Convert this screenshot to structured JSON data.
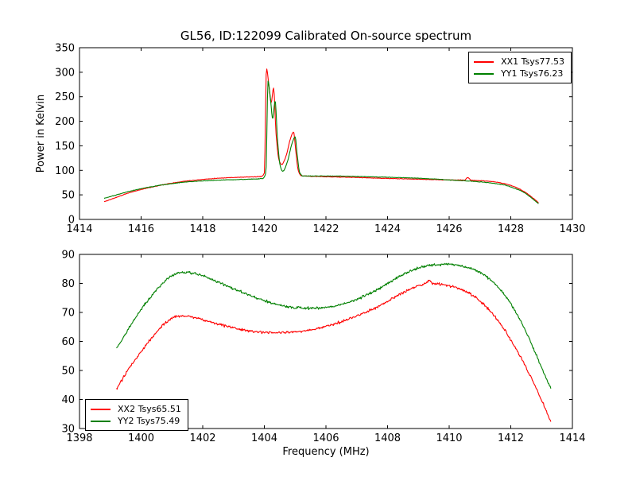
{
  "figure": {
    "background": "#ffffff",
    "frame_color": "#000000",
    "text_color": "#000000"
  },
  "chart_data": [
    {
      "type": "line",
      "title": "GL56, ID:122099 Calibrated On-source spectrum",
      "xlabel": "",
      "ylabel": "Power in Kelvin",
      "xlim": [
        1414,
        1430
      ],
      "ylim": [
        0,
        350
      ],
      "xticks": [
        1414,
        1416,
        1418,
        1420,
        1422,
        1424,
        1426,
        1428,
        1430
      ],
      "yticks": [
        0,
        50,
        100,
        150,
        200,
        250,
        300,
        350
      ],
      "grid": false,
      "legend_position": "upper right",
      "series": [
        {
          "name": "XX1 Tsys77.53",
          "color": "#ff0000",
          "noise": 1.1,
          "seed": 11,
          "keypoints": [
            [
              1414.8,
              36
            ],
            [
              1415.2,
              45
            ],
            [
              1415.6,
              54
            ],
            [
              1416.0,
              61
            ],
            [
              1416.5,
              68
            ],
            [
              1417.0,
              74
            ],
            [
              1417.5,
              78.5
            ],
            [
              1418.0,
              81.5
            ],
            [
              1418.5,
              84
            ],
            [
              1419.0,
              85.5
            ],
            [
              1419.5,
              86.5
            ],
            [
              1419.9,
              87.5
            ],
            [
              1420.0,
              95
            ],
            [
              1420.07,
              308
            ],
            [
              1420.15,
              272
            ],
            [
              1420.22,
              238
            ],
            [
              1420.3,
              268
            ],
            [
              1420.38,
              175
            ],
            [
              1420.48,
              120
            ],
            [
              1420.56,
              112
            ],
            [
              1420.7,
              128
            ],
            [
              1420.85,
              165
            ],
            [
              1420.95,
              178
            ],
            [
              1421.02,
              140
            ],
            [
              1421.1,
              100
            ],
            [
              1421.2,
              89
            ],
            [
              1421.5,
              88
            ],
            [
              1422.0,
              87
            ],
            [
              1423.0,
              85.5
            ],
            [
              1424.0,
              83.5
            ],
            [
              1425.0,
              82
            ],
            [
              1425.6,
              81
            ],
            [
              1426.0,
              80.5
            ],
            [
              1426.5,
              80.2
            ],
            [
              1426.6,
              85.5
            ],
            [
              1426.72,
              79.8
            ],
            [
              1427.0,
              79
            ],
            [
              1427.4,
              77
            ],
            [
              1427.8,
              73
            ],
            [
              1428.1,
              67
            ],
            [
              1428.4,
              58
            ],
            [
              1428.65,
              47
            ],
            [
              1428.9,
              34
            ]
          ]
        },
        {
          "name": "YY1 Tsys76.23",
          "color": "#008000",
          "noise": 1.1,
          "seed": 21,
          "keypoints": [
            [
              1414.8,
              43
            ],
            [
              1415.2,
              50
            ],
            [
              1415.6,
              57
            ],
            [
              1416.0,
              62.5
            ],
            [
              1416.5,
              68.5
            ],
            [
              1417.0,
              73
            ],
            [
              1417.5,
              76.5
            ],
            [
              1418.0,
              78.5
            ],
            [
              1418.5,
              80
            ],
            [
              1419.0,
              81
            ],
            [
              1419.5,
              82
            ],
            [
              1419.95,
              83.5
            ],
            [
              1420.05,
              95
            ],
            [
              1420.12,
              282
            ],
            [
              1420.2,
              245
            ],
            [
              1420.27,
              205
            ],
            [
              1420.35,
              242
            ],
            [
              1420.43,
              160
            ],
            [
              1420.52,
              108
            ],
            [
              1420.6,
              98
            ],
            [
              1420.75,
              118
            ],
            [
              1420.9,
              155
            ],
            [
              1421.0,
              168
            ],
            [
              1421.07,
              130
            ],
            [
              1421.15,
              95
            ],
            [
              1421.25,
              88.5
            ],
            [
              1421.5,
              88.5
            ],
            [
              1422.0,
              88.5
            ],
            [
              1423.0,
              87.5
            ],
            [
              1424.0,
              86
            ],
            [
              1425.0,
              84
            ],
            [
              1425.6,
              82
            ],
            [
              1426.0,
              80.5
            ],
            [
              1426.5,
              78.8
            ],
            [
              1427.0,
              76.5
            ],
            [
              1427.4,
              74
            ],
            [
              1427.8,
              70
            ],
            [
              1428.1,
              64
            ],
            [
              1428.4,
              56
            ],
            [
              1428.65,
              45
            ],
            [
              1428.9,
              32
            ]
          ]
        }
      ]
    },
    {
      "type": "line",
      "title": "",
      "xlabel": "Frequency (MHz)",
      "ylabel": "",
      "xlim": [
        1398,
        1414
      ],
      "ylim": [
        30,
        90
      ],
      "xticks": [
        1398,
        1400,
        1402,
        1404,
        1406,
        1408,
        1410,
        1412,
        1414
      ],
      "yticks": [
        30,
        40,
        50,
        60,
        70,
        80,
        90
      ],
      "grid": false,
      "legend_position": "lower left",
      "series": [
        {
          "name": "XX2 Tsys65.51",
          "color": "#ff0000",
          "noise": 0.9,
          "seed": 31,
          "keypoints": [
            [
              1399.2,
              43.5
            ],
            [
              1399.6,
              50.5
            ],
            [
              1400.0,
              56.5
            ],
            [
              1400.4,
              62
            ],
            [
              1400.8,
              66.5
            ],
            [
              1401.2,
              68.8
            ],
            [
              1401.6,
              68.6
            ],
            [
              1402.0,
              67.5
            ],
            [
              1402.5,
              66
            ],
            [
              1403.0,
              64.7
            ],
            [
              1403.5,
              63.6
            ],
            [
              1404.0,
              63.1
            ],
            [
              1404.5,
              63
            ],
            [
              1405.0,
              63.3
            ],
            [
              1405.5,
              64
            ],
            [
              1406.0,
              65.2
            ],
            [
              1406.5,
              66.8
            ],
            [
              1407.0,
              68.8
            ],
            [
              1407.5,
              71
            ],
            [
              1408.0,
              73.8
            ],
            [
              1408.5,
              76.8
            ],
            [
              1409.0,
              79.2
            ],
            [
              1409.25,
              80
            ],
            [
              1409.35,
              81
            ],
            [
              1409.45,
              79.9
            ],
            [
              1409.7,
              79.8
            ],
            [
              1410.0,
              79.2
            ],
            [
              1410.4,
              77.8
            ],
            [
              1410.8,
              75.5
            ],
            [
              1411.2,
              72
            ],
            [
              1411.6,
              67
            ],
            [
              1412.0,
              60.5
            ],
            [
              1412.4,
              53
            ],
            [
              1412.8,
              44.5
            ],
            [
              1413.1,
              37.5
            ],
            [
              1413.3,
              32.3
            ]
          ]
        },
        {
          "name": "YY2 Tsys75.49",
          "color": "#008000",
          "noise": 0.9,
          "seed": 41,
          "keypoints": [
            [
              1399.2,
              57.5
            ],
            [
              1399.6,
              64.5
            ],
            [
              1400.0,
              71
            ],
            [
              1400.4,
              76.5
            ],
            [
              1400.8,
              81
            ],
            [
              1401.1,
              83.3
            ],
            [
              1401.4,
              83.8
            ],
            [
              1401.8,
              83.2
            ],
            [
              1402.2,
              81.8
            ],
            [
              1402.6,
              80
            ],
            [
              1403.0,
              78.2
            ],
            [
              1403.5,
              76
            ],
            [
              1404.0,
              74
            ],
            [
              1404.5,
              72.5
            ],
            [
              1405.0,
              71.7
            ],
            [
              1405.5,
              71.4
            ],
            [
              1406.0,
              71.7
            ],
            [
              1406.5,
              72.8
            ],
            [
              1407.0,
              74.5
            ],
            [
              1407.5,
              77
            ],
            [
              1408.0,
              80
            ],
            [
              1408.5,
              83
            ],
            [
              1409.0,
              85.3
            ],
            [
              1409.5,
              86.4
            ],
            [
              1410.0,
              86.6
            ],
            [
              1410.4,
              86
            ],
            [
              1410.8,
              84.8
            ],
            [
              1411.2,
              82.5
            ],
            [
              1411.6,
              78.5
            ],
            [
              1412.0,
              73
            ],
            [
              1412.4,
              65.5
            ],
            [
              1412.8,
              56
            ],
            [
              1413.1,
              48.5
            ],
            [
              1413.3,
              44
            ]
          ]
        }
      ]
    }
  ]
}
